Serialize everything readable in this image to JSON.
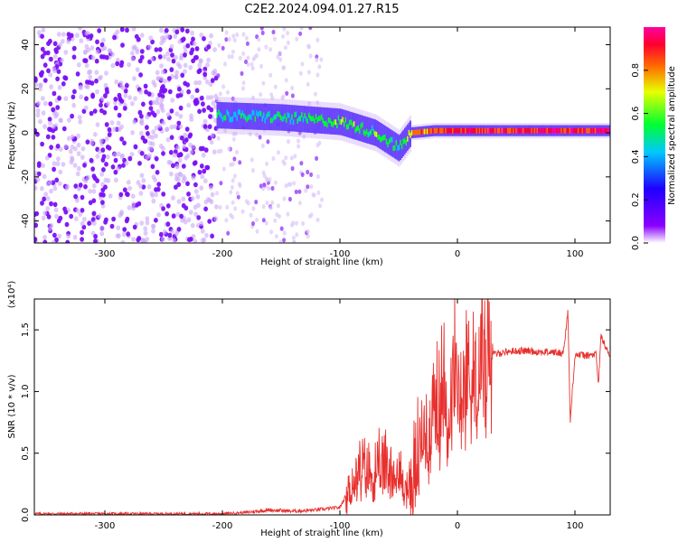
{
  "title": "C2E2.2024.094.01.27.R15",
  "chart_data": [
    {
      "type": "heatmap",
      "xlabel": "Height of straight line (km)",
      "ylabel": "Frequency (Hz)",
      "xlim": [
        -360,
        130
      ],
      "ylim": [
        -50,
        48
      ],
      "xticks": [
        -300,
        -200,
        -100,
        0,
        100
      ],
      "yticks": [
        -40,
        -20,
        0,
        20,
        40
      ],
      "colorbar": {
        "label": "Normalized spectral amplitude",
        "range": [
          0,
          1
        ],
        "ticks": [
          "0.0",
          "0.2",
          "0.4",
          "0.6",
          "0.8"
        ],
        "colormap": [
          "#ffffff",
          "#8a00ff",
          "#1f00ff",
          "#00c8ff",
          "#00ff30",
          "#e8ff00",
          "#ff6a00",
          "#ff0030",
          "#ff00a0"
        ]
      },
      "features": [
        {
          "region": "noise",
          "x_range": [
            -360,
            -205
          ],
          "freq_range": [
            -50,
            48
          ],
          "amplitude": 0.05
        },
        {
          "region": "sparse-noise",
          "x_range": [
            -205,
            -115
          ],
          "freq_range": [
            -50,
            48
          ],
          "amplitude": 0.02
        },
        {
          "region": "signal-band",
          "x": [
            -205,
            -150,
            -100,
            -70,
            -50,
            -40,
            -20,
            0,
            50,
            100,
            130
          ],
          "center_freq": [
            8,
            7,
            5,
            0,
            -7,
            0,
            1,
            1,
            1,
            1,
            1
          ],
          "amplitude": [
            0.4,
            0.45,
            0.5,
            0.5,
            0.45,
            0.7,
            0.8,
            0.85,
            0.9,
            0.9,
            0.9
          ]
        }
      ]
    },
    {
      "type": "line",
      "xlabel": "Height of straight line (km)",
      "ylabel": "SNR (10 * v/v)",
      "ylabel_scale": "(x10⁴)",
      "xlim": [
        -360,
        130
      ],
      "ylim": [
        0,
        1.75
      ],
      "xticks": [
        -300,
        -200,
        -100,
        0,
        100
      ],
      "yticks": [
        "0.0",
        "0.5",
        "1.0",
        "1.5"
      ],
      "color": "#e8302e",
      "series": [
        {
          "x": [
            -360,
            -300,
            -250,
            -200,
            -180,
            -160,
            -140,
            -120,
            -100,
            -90,
            -80,
            -70,
            -60,
            -50,
            -40,
            -30,
            -20,
            -10,
            0,
            10,
            20,
            30,
            40,
            50,
            60,
            70,
            80,
            90,
            94,
            96,
            100,
            110,
            118,
            120,
            122,
            130
          ],
          "values": [
            0.01,
            0.01,
            0.01,
            0.01,
            0.02,
            0.04,
            0.03,
            0.04,
            0.06,
            0.25,
            0.35,
            0.3,
            0.4,
            0.3,
            0.2,
            0.55,
            0.8,
            0.95,
            1.05,
            1.15,
            1.25,
            1.3,
            1.32,
            1.33,
            1.33,
            1.32,
            1.32,
            1.31,
            1.65,
            0.75,
            1.3,
            1.29,
            1.3,
            1.05,
            1.45,
            1.28
          ]
        }
      ]
    }
  ]
}
